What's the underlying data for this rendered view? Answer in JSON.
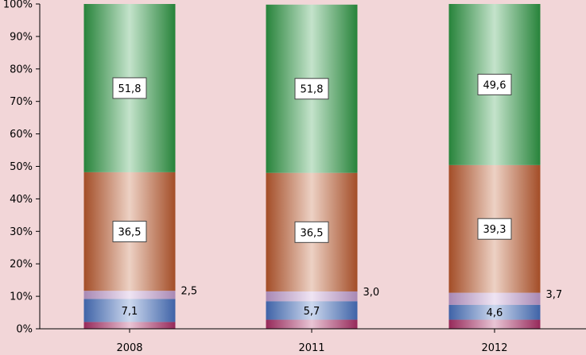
{
  "chart_data": {
    "type": "bar",
    "stacked": true,
    "percent": true,
    "categories": [
      "2008",
      "2011",
      "2012"
    ],
    "ylim": [
      0,
      100
    ],
    "y_ticks": [
      "0%",
      "10%",
      "20%",
      "30%",
      "40%",
      "50%",
      "60%",
      "70%",
      "80%",
      "90%",
      "100%"
    ],
    "grid": false,
    "series": [
      {
        "values": [
          2.1,
          2.8,
          2.8
        ],
        "labels": [
          "",
          "",
          ""
        ],
        "color": "#b0306a",
        "label_style": "none"
      },
      {
        "values": [
          7.1,
          5.7,
          4.6
        ],
        "labels": [
          "7,1",
          "5,7",
          "4,6"
        ],
        "color": "#4a74c4",
        "label_style": "inside"
      },
      {
        "values": [
          2.5,
          3.0,
          3.7
        ],
        "labels": [
          "2,5",
          "3,0",
          "3,7"
        ],
        "color": "#c6a0d4",
        "label_style": "outside"
      },
      {
        "values": [
          36.5,
          36.5,
          39.3
        ],
        "labels": [
          "36,5",
          "36,5",
          "39,3"
        ],
        "color": "#c05a2e",
        "label_style": "boxed"
      },
      {
        "values": [
          51.8,
          51.8,
          49.6
        ],
        "labels": [
          "51,8",
          "51,8",
          "49,6"
        ],
        "color": "#2e9a44",
        "label_style": "boxed"
      }
    ]
  }
}
